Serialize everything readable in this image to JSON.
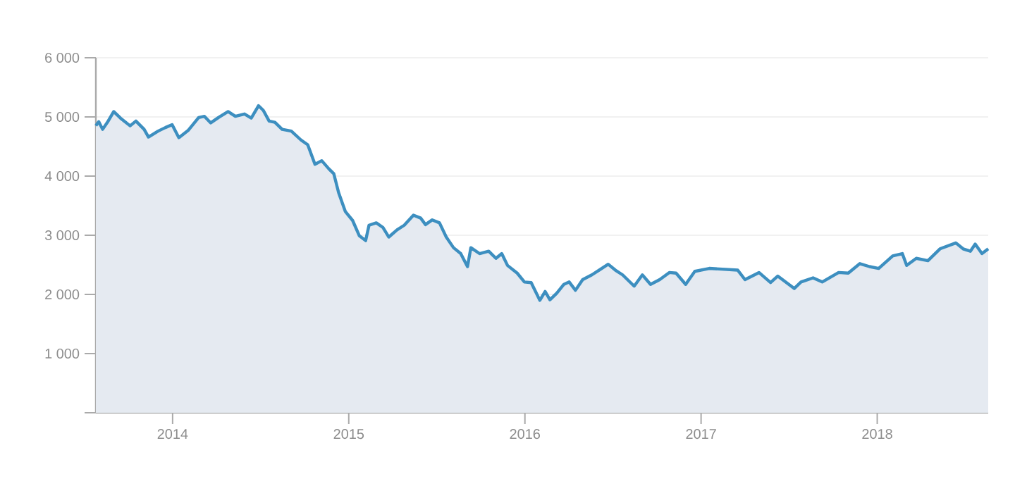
{
  "chart_data": {
    "type": "area",
    "x": [
      "2013-07-26",
      "2013-08-01",
      "2013-08-09",
      "2013-08-19",
      "2013-09-01",
      "2013-09-15",
      "2013-10-05",
      "2013-10-17",
      "2013-11-03",
      "2013-11-12",
      "2013-12-02",
      "2013-12-17",
      "2013-12-31",
      "2014-01-14",
      "2014-02-02",
      "2014-02-24",
      "2014-03-08",
      "2014-03-21",
      "2014-04-06",
      "2014-04-26",
      "2014-05-11",
      "2014-05-30",
      "2014-06-13",
      "2014-06-28",
      "2014-07-08",
      "2014-07-20",
      "2014-08-01",
      "2014-08-16",
      "2014-09-04",
      "2014-09-24",
      "2014-10-08",
      "2014-10-23",
      "2014-11-06",
      "2014-11-21",
      "2014-12-01",
      "2014-12-11",
      "2014-12-25",
      "2015-01-09",
      "2015-01-23",
      "2015-02-05",
      "2015-02-12",
      "2015-02-27",
      "2015-03-13",
      "2015-03-25",
      "2015-04-11",
      "2015-04-26",
      "2015-05-15",
      "2015-05-30",
      "2015-06-09",
      "2015-06-23",
      "2015-07-08",
      "2015-07-22",
      "2015-08-06",
      "2015-08-21",
      "2015-09-04",
      "2015-09-11",
      "2015-09-29",
      "2015-10-18",
      "2015-11-02",
      "2015-11-14",
      "2015-11-26",
      "2015-12-16",
      "2015-12-31",
      "2016-01-14",
      "2016-02-01",
      "2016-02-12",
      "2016-02-22",
      "2016-03-07",
      "2016-03-22",
      "2016-04-02",
      "2016-04-15",
      "2016-04-30",
      "2016-05-19",
      "2016-06-03",
      "2016-06-22",
      "2016-07-07",
      "2016-07-22",
      "2016-08-15",
      "2016-09-01",
      "2016-09-18",
      "2016-10-07",
      "2016-10-27",
      "2016-11-10",
      "2016-11-30",
      "2016-12-19",
      "2017-01-18",
      "2017-03-18",
      "2017-04-02",
      "2017-05-01",
      "2017-05-25",
      "2017-06-09",
      "2017-07-13",
      "2017-07-27",
      "2017-08-21",
      "2017-09-09",
      "2017-10-13",
      "2017-11-02",
      "2017-11-26",
      "2017-12-16",
      "2018-01-04",
      "2018-02-02",
      "2018-02-22",
      "2018-03-03",
      "2018-03-23",
      "2018-04-16",
      "2018-05-11",
      "2018-06-13",
      "2018-06-28",
      "2018-07-13",
      "2018-07-23",
      "2018-08-06",
      "2018-08-19"
    ],
    "series": [
      {
        "color": "#3d8fc0",
        "values": [
          4850,
          4920,
          4790,
          4910,
          5090,
          4980,
          4850,
          4930,
          4790,
          4660,
          4760,
          4820,
          4870,
          4650,
          4770,
          4990,
          5010,
          4900,
          4990,
          5090,
          5010,
          5050,
          4980,
          5190,
          5110,
          4930,
          4910,
          4790,
          4760,
          4610,
          4530,
          4200,
          4260,
          4120,
          4040,
          3720,
          3400,
          3250,
          2990,
          2910,
          3170,
          3210,
          3130,
          2970,
          3090,
          3170,
          3340,
          3290,
          3180,
          3260,
          3210,
          2970,
          2790,
          2690,
          2470,
          2790,
          2690,
          2730,
          2610,
          2690,
          2490,
          2360,
          2210,
          2200,
          1900,
          2050,
          1910,
          2020,
          2170,
          2210,
          2070,
          2250,
          2330,
          2410,
          2510,
          2410,
          2330,
          2140,
          2330,
          2170,
          2250,
          2370,
          2360,
          2170,
          2390,
          2440,
          2410,
          2250,
          2370,
          2200,
          2310,
          2100,
          2210,
          2280,
          2210,
          2370,
          2360,
          2520,
          2470,
          2440,
          2650,
          2690,
          2490,
          2610,
          2570,
          2770,
          2870,
          2770,
          2730,
          2850,
          2690,
          2770
        ]
      }
    ],
    "xlim": [
      "2013-07-26",
      "2018-08-19"
    ],
    "xticks": [
      "2014",
      "2015",
      "2016",
      "2017",
      "2018"
    ],
    "ylim": [
      0,
      6000
    ],
    "yticks": [
      {
        "value": 0,
        "label": null
      },
      {
        "value": 1000,
        "label": "1 000"
      },
      {
        "value": 2000,
        "label": "2 000"
      },
      {
        "value": 3000,
        "label": "3 000"
      },
      {
        "value": 4000,
        "label": "4 000"
      },
      {
        "value": 5000,
        "label": "5 000"
      },
      {
        "value": 6000,
        "label": "6 000"
      }
    ],
    "grid": "y"
  }
}
